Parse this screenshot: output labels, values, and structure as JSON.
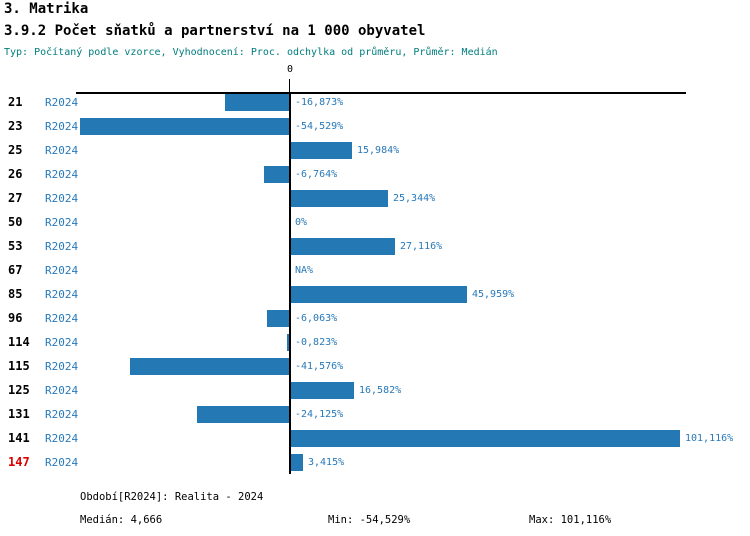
{
  "header": {
    "section": "3. Matrika",
    "title": "3.9.2 Počet sňatků a partnerství na 1 000 obyvatel",
    "meta": "Typ: Počítaný podle vzorce, Vyhodnocení: Proc. odchylka od průměru, Průměr: Medián"
  },
  "chart": {
    "zero_label": "0"
  },
  "chart_data": {
    "type": "bar",
    "orientation": "horizontal",
    "title": "3.9.2 Počet sňatků a partnerství na 1 000 obyvatel",
    "xlabel": "Proc. odchylka od průměru (%)",
    "ylabel": "",
    "categories": [
      "21",
      "23",
      "25",
      "26",
      "27",
      "50",
      "53",
      "67",
      "85",
      "96",
      "114",
      "115",
      "125",
      "131",
      "141",
      "147"
    ],
    "series_label": "R2024",
    "values": [
      -16.873,
      -54.529,
      15.984,
      -6.764,
      25.344,
      0,
      27.116,
      null,
      45.959,
      -6.063,
      -0.823,
      -41.576,
      16.582,
      -24.125,
      101.116,
      3.415
    ],
    "value_labels": [
      "-16,873%",
      "-54,529%",
      "15,984%",
      "-6,764%",
      "25,344%",
      "0%",
      "27,116%",
      "NA%",
      "45,959%",
      "-6,063%",
      "-0,823%",
      "-41,576%",
      "16,582%",
      "-24,125%",
      "101,116%",
      "3,415%"
    ],
    "highlighted_category": "147",
    "xlim": [
      -55.5,
      102.7
    ],
    "zero_line": 0,
    "grid": false,
    "legend_position": "none"
  },
  "footer": {
    "period": "Období[R2024]: Realita - 2024",
    "median": "Medián: 4,666",
    "min": "Min: -54,529%",
    "max": "Max: 101,116%"
  },
  "colors": {
    "bar": "#2478b4",
    "text_blue": "#2878b8",
    "meta_teal": "#007d7d",
    "highlight_red": "#dd0000",
    "axis_black": "#000000"
  }
}
